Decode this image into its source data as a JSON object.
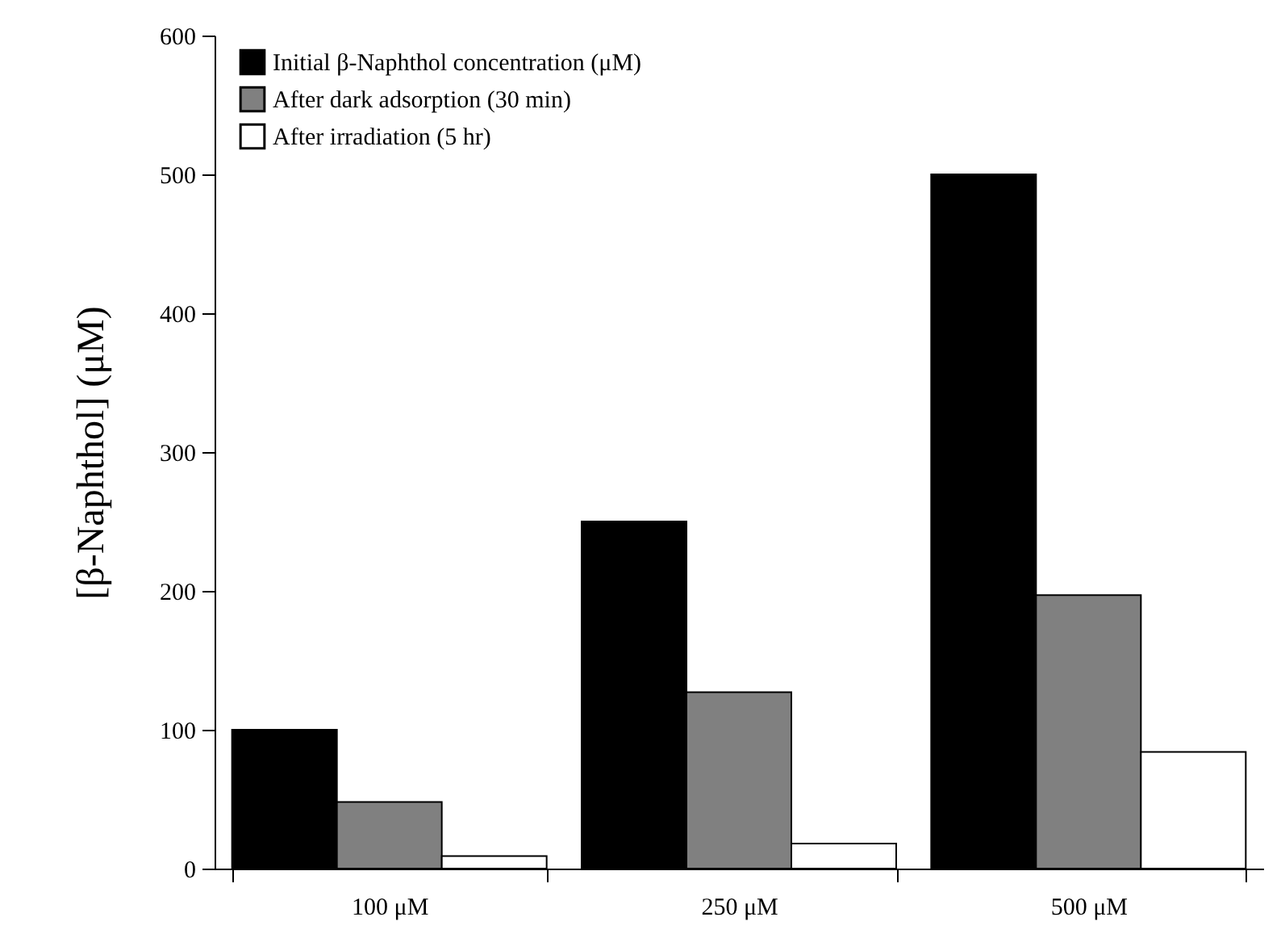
{
  "chart_data": {
    "type": "bar",
    "ylabel": "[β-Naphthol] (μM)",
    "categories": [
      "100 μM",
      "250 μM",
      "500 μM"
    ],
    "series": [
      {
        "name": "Initial β-Naphthol concentration (μM)",
        "color": "#000000",
        "values": [
          100,
          250,
          500
        ]
      },
      {
        "name": "After dark adsorption (30 min)",
        "color": "#808080",
        "values": [
          48,
          127,
          197
        ]
      },
      {
        "name": "After irradiation (5 hr)",
        "color": "#ffffff",
        "values": [
          9,
          18,
          84
        ]
      }
    ],
    "ylim": [
      0,
      600
    ],
    "yticks": [
      0,
      100,
      200,
      300,
      400,
      500,
      600
    ],
    "grid": false,
    "legend": "top left"
  }
}
